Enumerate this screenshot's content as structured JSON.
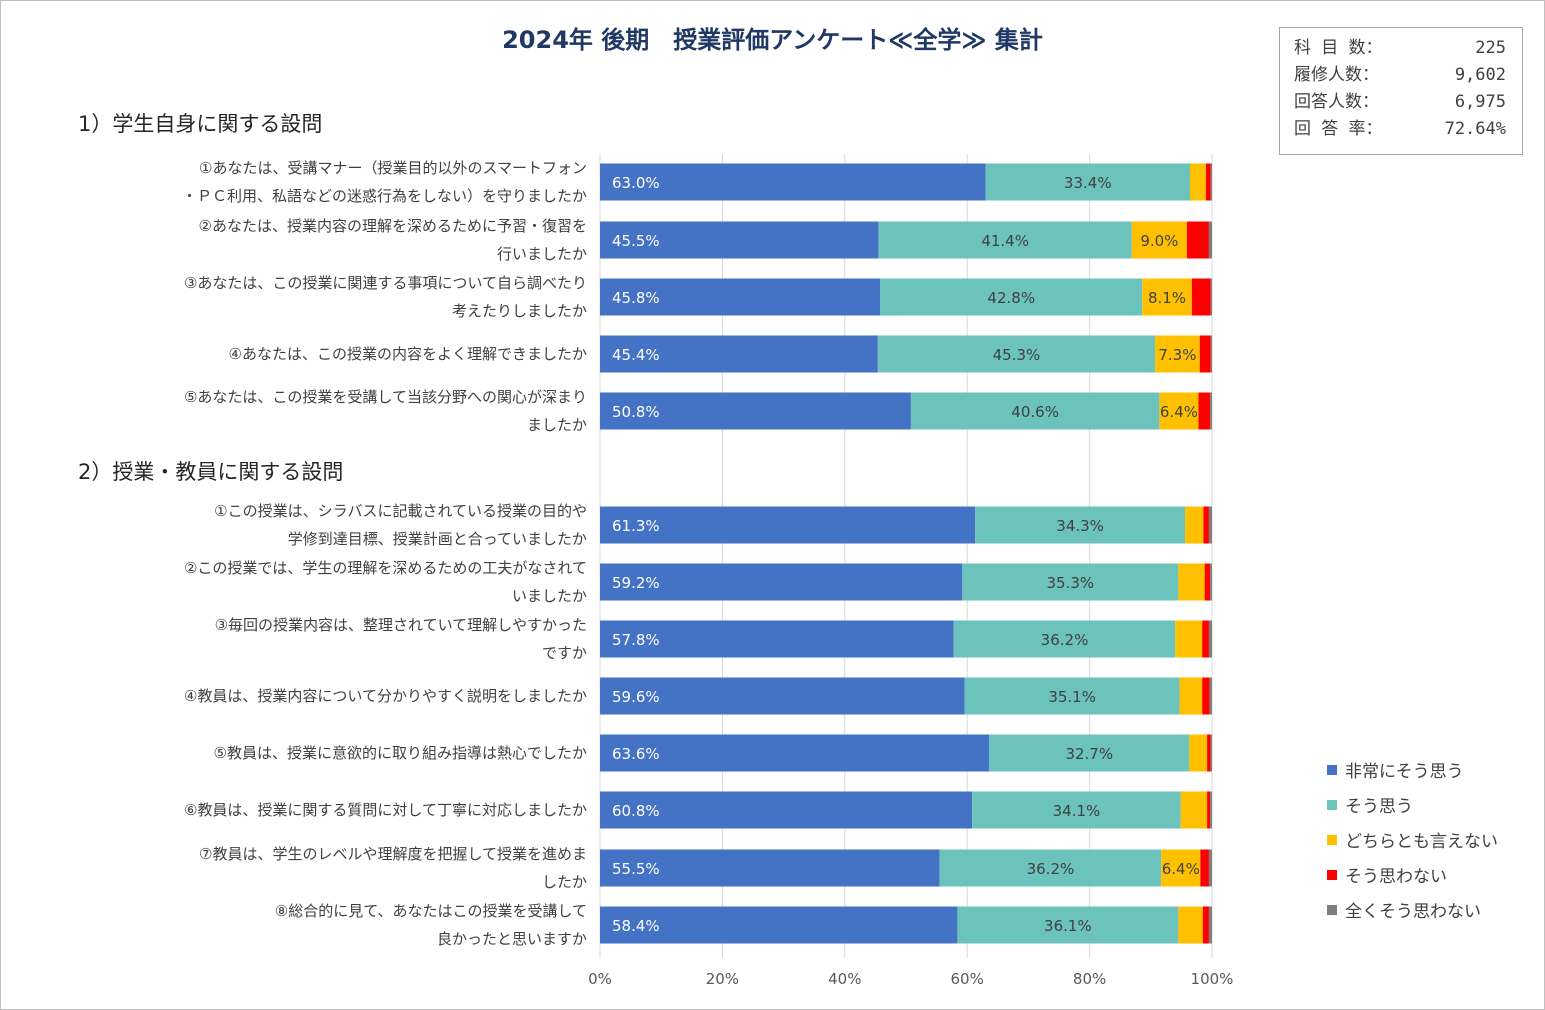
{
  "title": "2024年 後期　授業評価アンケート≪全学≫ 集計",
  "stats": [
    {
      "label": "科 目 数：",
      "value": "225"
    },
    {
      "label": "履修人数：",
      "value": "9,602"
    },
    {
      "label": "回答人数：",
      "value": "6,975"
    },
    {
      "label": "回 答 率：",
      "value": "72.64%"
    }
  ],
  "sections": [
    {
      "label": "1）学生自身に関する設問"
    },
    {
      "label": "2）授業・教員に関する設問"
    }
  ],
  "colors": {
    "非常にそう思う": "#4472c4",
    "そう思う": "#6cc3bc",
    "どちらとも言えない": "#ffc000",
    "そう思わない": "#ff0000",
    "全くそう思わない": "#7f7f7f"
  },
  "chart_data": {
    "type": "bar",
    "orientation": "horizontal",
    "stacked": "percent",
    "xlim": [
      0,
      100
    ],
    "x_ticks": [
      "0%",
      "20%",
      "40%",
      "60%",
      "80%",
      "100%"
    ],
    "grid": true,
    "legend_position": "right",
    "categories": [
      [
        "①あなたは、受講マナー（授業目的以外のスマートフォン",
        "・ＰＣ利用、私語などの迷惑行為をしない）を守りましたか"
      ],
      [
        "②あなたは、授業内容の理解を深めるために予習・復習を",
        "行いましたか"
      ],
      [
        "③あなたは、この授業に関連する事項について自ら調べたり",
        "考えたりしましたか"
      ],
      [
        "④あなたは、この授業の内容をよく理解できましたか"
      ],
      [
        "⑤あなたは、この授業を受講して当該分野への関心が深まり",
        "ましたか"
      ],
      [
        "①この授業は、シラバスに記載されている授業の目的や",
        "学修到達目標、授業計画と合っていましたか"
      ],
      [
        "②この授業では、学生の理解を深めるための工夫がなされて",
        "いましたか"
      ],
      [
        "③毎回の授業内容は、整理されていて理解しやすかった",
        "ですか"
      ],
      [
        "④教員は、授業内容について分かりやすく説明をしましたか"
      ],
      [
        "⑤教員は、授業に意欲的に取り組み指導は熱心でしたか"
      ],
      [
        "⑥教員は、授業に関する質問に対して丁寧に対応しましたか"
      ],
      [
        "⑦教員は、学生のレベルや理解度を把握して授業を進めま",
        "したか"
      ],
      [
        "⑧総合的に見て、あなたはこの授業を受講して",
        "良かったと思いますか"
      ]
    ],
    "series": [
      {
        "name": "非常にそう思う",
        "values": [
          63.0,
          45.5,
          45.8,
          45.4,
          50.8,
          61.3,
          59.2,
          57.8,
          59.6,
          63.6,
          60.8,
          55.5,
          58.4
        ],
        "labels": [
          "63.0%",
          "45.5%",
          "45.8%",
          "45.4%",
          "50.8%",
          "61.3%",
          "59.2%",
          "57.8%",
          "59.6%",
          "63.6%",
          "60.8%",
          "55.5%",
          "58.4%"
        ]
      },
      {
        "name": "そう思う",
        "values": [
          33.4,
          41.4,
          42.8,
          45.3,
          40.6,
          34.3,
          35.3,
          36.2,
          35.1,
          32.7,
          34.1,
          36.2,
          36.1
        ],
        "labels": [
          "33.4%",
          "41.4%",
          "42.8%",
          "45.3%",
          "40.6%",
          "34.3%",
          "35.3%",
          "36.2%",
          "35.1%",
          "32.7%",
          "34.1%",
          "36.2%",
          "36.1%"
        ]
      },
      {
        "name": "どちらとも言えない",
        "values": [
          2.6,
          9.0,
          8.1,
          7.3,
          6.4,
          3.0,
          4.3,
          4.4,
          3.7,
          2.9,
          4.3,
          6.4,
          4.0
        ],
        "labels": [
          "",
          "9.0%",
          "8.1%",
          "7.3%",
          "6.4%",
          "",
          "",
          "",
          "",
          "",
          "",
          "6.4%",
          ""
        ]
      },
      {
        "name": "そう思わない",
        "values": [
          0.8,
          3.6,
          3.1,
          1.8,
          1.9,
          0.9,
          0.9,
          1.1,
          1.2,
          0.6,
          0.5,
          1.4,
          1.0
        ],
        "labels": [
          "",
          "",
          "",
          "",
          "",
          "",
          "",
          "",
          "",
          "",
          "",
          "",
          ""
        ]
      },
      {
        "name": "全くそう思わない",
        "values": [
          0.2,
          0.5,
          0.2,
          0.2,
          0.3,
          0.5,
          0.3,
          0.5,
          0.4,
          0.2,
          0.3,
          0.5,
          0.5
        ],
        "labels": [
          "",
          "",
          "",
          "",
          "",
          "",
          "",
          "",
          "",
          "",
          "",
          "",
          ""
        ]
      }
    ]
  }
}
